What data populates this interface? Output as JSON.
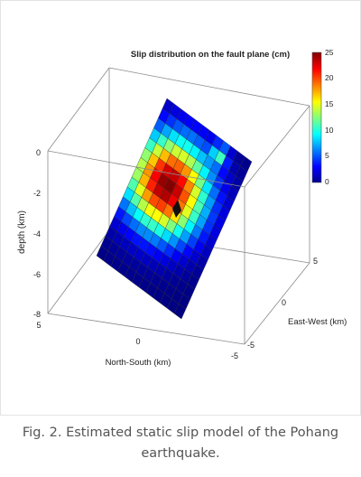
{
  "caption": "Fig. 2. Estimated static slip model of the Pohang earthquake.",
  "chart_data": {
    "type": "heatmap",
    "title": "Slip distribution on the fault plane (cm)",
    "zlabel": "depth (km)",
    "xlabel": "North-South (km)",
    "ylabel": "East-West (km)",
    "z_ticks": [
      "0",
      "-2",
      "-4",
      "-6",
      "-8"
    ],
    "z_range": [
      -8,
      0
    ],
    "ns_ticks": [
      "5",
      "0",
      "-5"
    ],
    "ns_range": [
      5,
      -5
    ],
    "ew_ticks": [
      "5",
      "0",
      "-5"
    ],
    "ew_range": [
      5,
      -5
    ],
    "colorbar": {
      "ticks": [
        "25",
        "20",
        "15",
        "10",
        "5",
        "0"
      ],
      "range": [
        0,
        25
      ],
      "colormap": "jet"
    },
    "grid": {
      "strike_cells": 12,
      "dip_cells": 16
    },
    "slip_peak": {
      "max_cm": 25,
      "center_strike_cell": 4.2,
      "center_dip_cell": 6.6,
      "sigma_strike_cells": 3.4,
      "sigma_dip_cells": 3.0,
      "secondary_patch_cm": 9,
      "secondary_strike_cell": 8.3,
      "secondary_dip_cell": 1.3
    }
  }
}
